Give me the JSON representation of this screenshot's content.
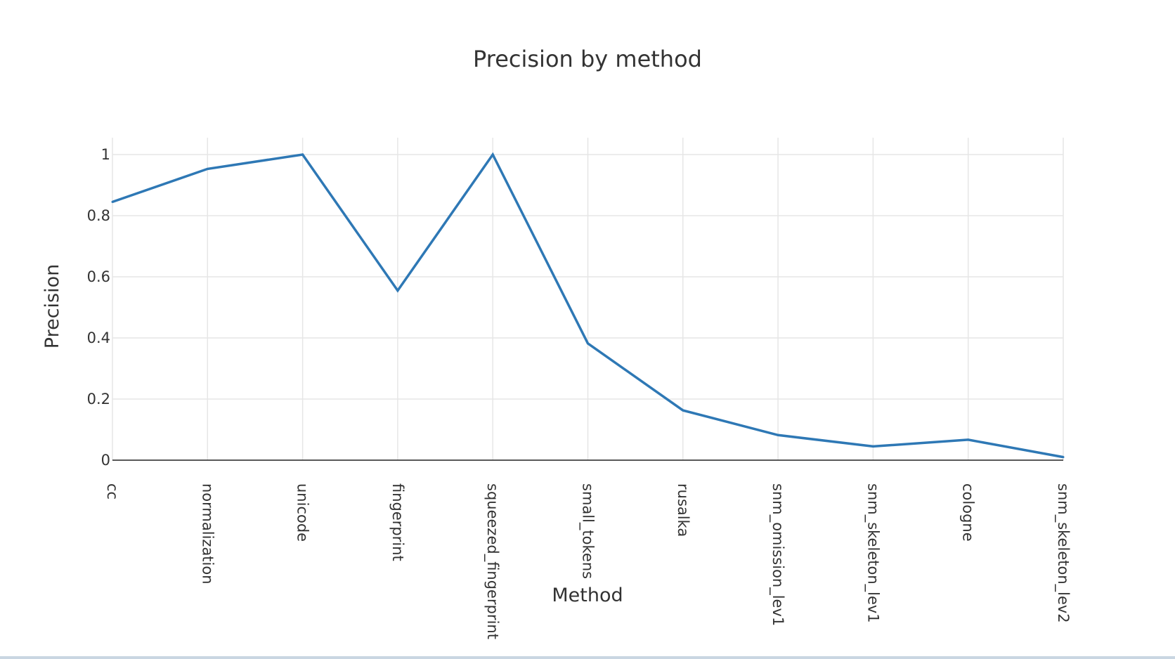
{
  "chart_data": {
    "type": "line",
    "title": "Precision by method",
    "xlabel": "Method",
    "ylabel": "Precision",
    "categories": [
      "cc",
      "normalization",
      "unicode",
      "fingerprint",
      "squeezed_fingerprint",
      "small_tokens",
      "rusalka",
      "snm_omission_lev1",
      "snm_skeleton_lev1",
      "cologne",
      "snm_skeleton_lev2"
    ],
    "values": [
      0.845,
      0.953,
      1.0,
      0.555,
      1.0,
      0.382,
      0.163,
      0.082,
      0.045,
      0.067,
      0.01
    ],
    "yticks": [
      0,
      0.2,
      0.4,
      0.6,
      0.8,
      1
    ],
    "ytick_labels": [
      "0",
      "0.2",
      "0.4",
      "0.6",
      "0.8",
      "1"
    ],
    "ylim": [
      0,
      1.05
    ],
    "grid": true,
    "line_color": "#2e78b5"
  }
}
